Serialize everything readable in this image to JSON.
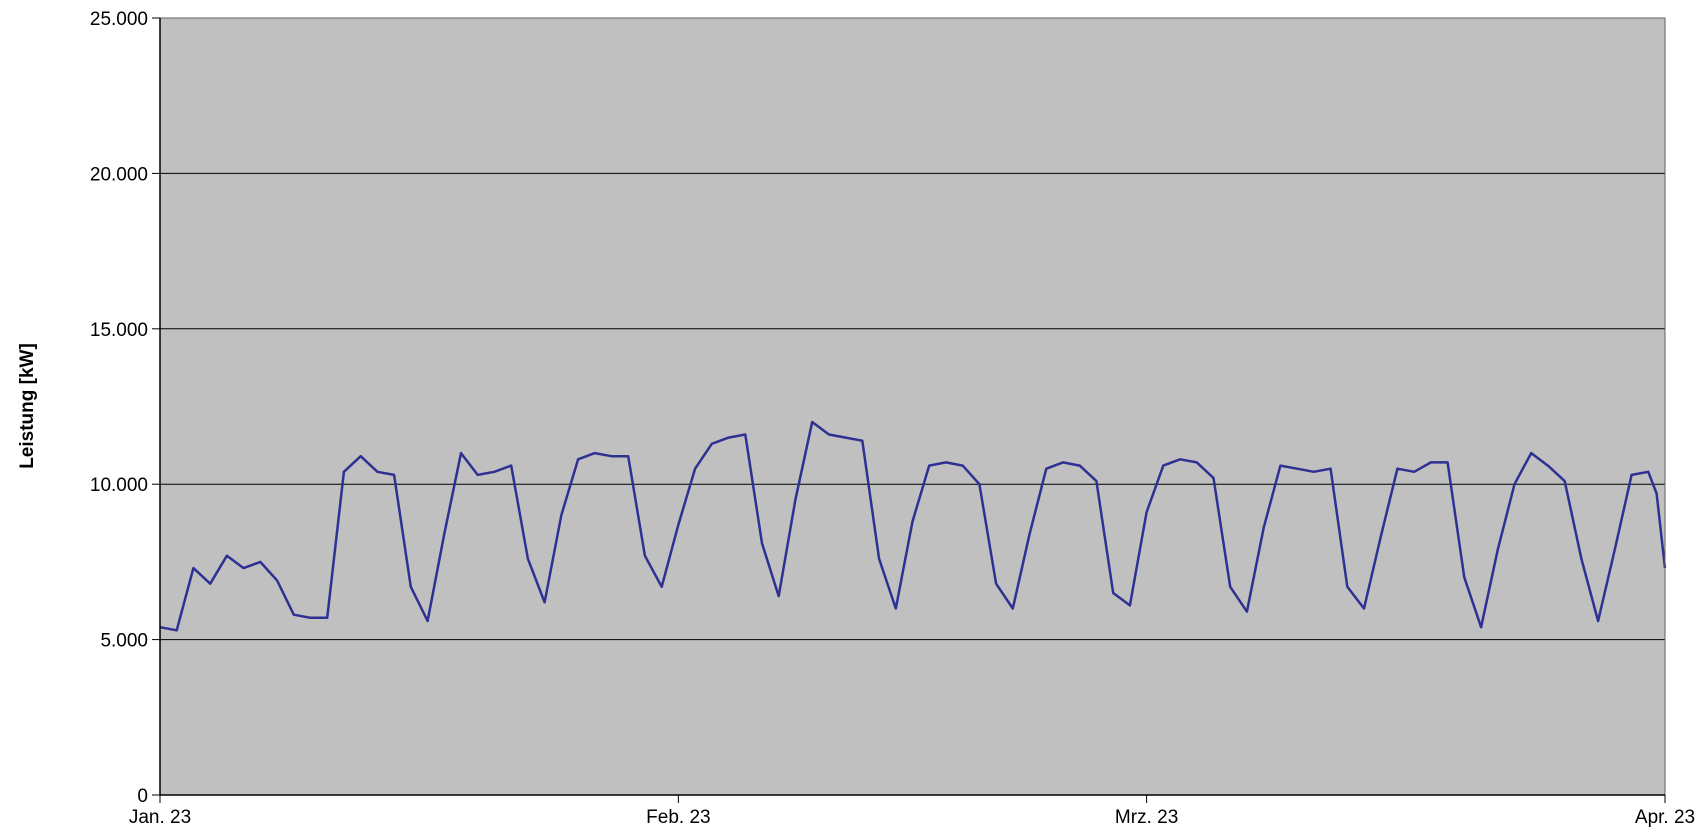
{
  "chart_data": {
    "type": "line",
    "title": "",
    "xlabel": "",
    "ylabel": "Leistung [kW]",
    "xlim": [
      "2023-01-01",
      "2023-04-01"
    ],
    "ylim": [
      0,
      25000
    ],
    "y_ticks": [
      0,
      5000,
      10000,
      15000,
      20000,
      25000
    ],
    "y_tick_labels": [
      "0",
      "5.000",
      "10.000",
      "15.000",
      "20.000",
      "25.000"
    ],
    "x_ticks": [
      "2023-01-01",
      "2023-02-01",
      "2023-03-01",
      "2023-04-01"
    ],
    "x_tick_labels": [
      "Jan. 23",
      "Feb. 23",
      "Mrz. 23",
      "Apr. 23"
    ],
    "grid": {
      "horizontal": true,
      "vertical": false
    },
    "legend": "none",
    "colors": {
      "background": "#c0c0c0",
      "line": "#2e3192",
      "grid": "#000000",
      "axis": "#000000"
    },
    "series": [
      {
        "name": "",
        "points": [
          [
            "2023-01-01",
            5400
          ],
          [
            "2023-01-02",
            5300
          ],
          [
            "2023-01-03",
            7300
          ],
          [
            "2023-01-04",
            6800
          ],
          [
            "2023-01-05",
            7700
          ],
          [
            "2023-01-06",
            7300
          ],
          [
            "2023-01-07",
            7500
          ],
          [
            "2023-01-08",
            6900
          ],
          [
            "2023-01-09",
            5800
          ],
          [
            "2023-01-10",
            5700
          ],
          [
            "2023-01-11",
            5700
          ],
          [
            "2023-01-12",
            10400
          ],
          [
            "2023-01-13",
            10900
          ],
          [
            "2023-01-14",
            10400
          ],
          [
            "2023-01-15",
            10300
          ],
          [
            "2023-01-16",
            6700
          ],
          [
            "2023-01-17",
            5600
          ],
          [
            "2023-01-18",
            8400
          ],
          [
            "2023-01-19",
            11000
          ],
          [
            "2023-01-20",
            10300
          ],
          [
            "2023-01-21",
            10400
          ],
          [
            "2023-01-22",
            10600
          ],
          [
            "2023-01-23",
            7600
          ],
          [
            "2023-01-24",
            6200
          ],
          [
            "2023-01-25",
            9000
          ],
          [
            "2023-01-26",
            10800
          ],
          [
            "2023-01-27",
            11000
          ],
          [
            "2023-01-28",
            10900
          ],
          [
            "2023-01-29",
            10900
          ],
          [
            "2023-01-30",
            7700
          ],
          [
            "2023-01-31",
            6700
          ],
          [
            "2023-02-01",
            8700
          ],
          [
            "2023-02-02",
            10500
          ],
          [
            "2023-02-03",
            11300
          ],
          [
            "2023-02-04",
            11500
          ],
          [
            "2023-02-05",
            11600
          ],
          [
            "2023-02-06",
            8100
          ],
          [
            "2023-02-07",
            6400
          ],
          [
            "2023-02-08",
            9500
          ],
          [
            "2023-02-09",
            12000
          ],
          [
            "2023-02-10",
            11600
          ],
          [
            "2023-02-11",
            11500
          ],
          [
            "2023-02-12",
            11400
          ],
          [
            "2023-02-13",
            7600
          ],
          [
            "2023-02-14",
            6000
          ],
          [
            "2023-02-15",
            8800
          ],
          [
            "2023-02-16",
            10600
          ],
          [
            "2023-02-17",
            10700
          ],
          [
            "2023-02-18",
            10600
          ],
          [
            "2023-02-19",
            10000
          ],
          [
            "2023-02-20",
            6800
          ],
          [
            "2023-02-21",
            6000
          ],
          [
            "2023-02-22",
            8400
          ],
          [
            "2023-02-23",
            10500
          ],
          [
            "2023-02-24",
            10700
          ],
          [
            "2023-02-25",
            10600
          ],
          [
            "2023-02-26",
            10100
          ],
          [
            "2023-02-27",
            6500
          ],
          [
            "2023-02-28",
            6100
          ],
          [
            "2023-03-01",
            9100
          ],
          [
            "2023-03-02",
            10600
          ],
          [
            "2023-03-03",
            10800
          ],
          [
            "2023-03-04",
            10700
          ],
          [
            "2023-03-05",
            10200
          ],
          [
            "2023-03-06",
            6700
          ],
          [
            "2023-03-07",
            5900
          ],
          [
            "2023-03-08",
            8600
          ],
          [
            "2023-03-09",
            10600
          ],
          [
            "2023-03-10",
            10500
          ],
          [
            "2023-03-11",
            10400
          ],
          [
            "2023-03-12",
            10500
          ],
          [
            "2023-03-13",
            6700
          ],
          [
            "2023-03-14",
            6000
          ],
          [
            "2023-03-15",
            8300
          ],
          [
            "2023-03-16",
            10500
          ],
          [
            "2023-03-17",
            10400
          ],
          [
            "2023-03-18",
            10700
          ],
          [
            "2023-03-19",
            10700
          ],
          [
            "2023-03-20",
            7000
          ],
          [
            "2023-03-21",
            5400
          ],
          [
            "2023-03-22",
            7900
          ],
          [
            "2023-03-23",
            10000
          ],
          [
            "2023-03-24",
            11000
          ],
          [
            "2023-03-25",
            10600
          ],
          [
            "2023-03-26",
            10100
          ],
          [
            "2023-03-27",
            7600
          ],
          [
            "2023-03-28",
            5600
          ],
          [
            "2023-03-29",
            7900
          ],
          [
            "2023-03-30",
            10300
          ],
          [
            "2023-03-31",
            10400
          ],
          [
            "2023-03-31T12:00",
            9700
          ],
          [
            "2023-04-01",
            7300
          ]
        ]
      }
    ]
  }
}
